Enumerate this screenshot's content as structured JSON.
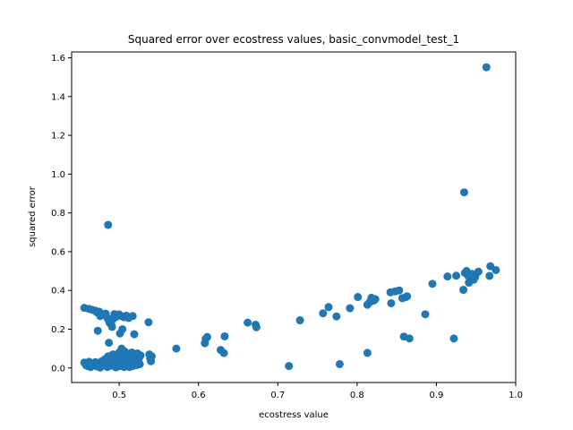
{
  "chart_data": {
    "type": "scatter",
    "title": "Squared error over ecostress values, basic_convmodel_test_1",
    "xlabel": "ecostress value",
    "ylabel": "squared error",
    "xlim": [
      0.44,
      1.0
    ],
    "ylim": [
      -0.075,
      1.63
    ],
    "xticks": [
      0.5,
      0.6,
      0.7,
      0.8,
      0.9,
      1.0
    ],
    "xtick_labels": [
      "0.5",
      "0.6",
      "0.7",
      "0.8",
      "0.9",
      "1.0"
    ],
    "yticks": [
      0.0,
      0.2,
      0.4,
      0.6,
      0.8,
      1.0,
      1.2,
      1.4,
      1.6
    ],
    "ytick_labels": [
      "0.0",
      "0.2",
      "0.4",
      "0.6",
      "0.8",
      "1.0",
      "1.2",
      "1.4",
      "1.6"
    ],
    "grid": false,
    "marker_color": "#1f77b4",
    "points": [
      [
        0.456,
        0.31
      ],
      [
        0.462,
        0.305
      ],
      [
        0.466,
        0.3
      ],
      [
        0.47,
        0.295
      ],
      [
        0.472,
        0.287
      ],
      [
        0.475,
        0.29
      ],
      [
        0.476,
        0.268
      ],
      [
        0.48,
        0.277
      ],
      [
        0.483,
        0.28
      ],
      [
        0.485,
        0.258
      ],
      [
        0.487,
        0.243
      ],
      [
        0.488,
        0.232
      ],
      [
        0.49,
        0.224
      ],
      [
        0.491,
        0.212
      ],
      [
        0.492,
        0.252
      ],
      [
        0.494,
        0.278
      ],
      [
        0.496,
        0.263
      ],
      [
        0.498,
        0.27
      ],
      [
        0.5,
        0.276
      ],
      [
        0.503,
        0.267
      ],
      [
        0.506,
        0.262
      ],
      [
        0.509,
        0.27
      ],
      [
        0.512,
        0.258
      ],
      [
        0.517,
        0.268
      ],
      [
        0.501,
        0.178
      ],
      [
        0.504,
        0.2
      ],
      [
        0.473,
        0.192
      ],
      [
        0.519,
        0.174
      ],
      [
        0.537,
        0.236
      ],
      [
        0.486,
        0.738
      ],
      [
        0.487,
        0.13
      ],
      [
        0.456,
        0.028
      ],
      [
        0.458,
        0.015
      ],
      [
        0.46,
        0.01
      ],
      [
        0.462,
        0.032
      ],
      [
        0.464,
        0.005
      ],
      [
        0.466,
        0.022
      ],
      [
        0.468,
        0.012
      ],
      [
        0.47,
        0.03
      ],
      [
        0.472,
        0.008
      ],
      [
        0.474,
        0.02
      ],
      [
        0.476,
        0.002
      ],
      [
        0.478,
        0.035
      ],
      [
        0.48,
        0.015
      ],
      [
        0.482,
        0.045
      ],
      [
        0.484,
        0.025
      ],
      [
        0.485,
        0.005
      ],
      [
        0.486,
        0.06
      ],
      [
        0.488,
        0.03
      ],
      [
        0.49,
        0.012
      ],
      [
        0.491,
        0.05
      ],
      [
        0.492,
        0.07
      ],
      [
        0.494,
        0.02
      ],
      [
        0.495,
        0.04
      ],
      [
        0.496,
        0.003
      ],
      [
        0.497,
        0.06
      ],
      [
        0.498,
        0.03
      ],
      [
        0.5,
        0.08
      ],
      [
        0.501,
        0.01
      ],
      [
        0.502,
        0.045
      ],
      [
        0.503,
        0.1
      ],
      [
        0.504,
        0.025
      ],
      [
        0.505,
        0.06
      ],
      [
        0.506,
        0.005
      ],
      [
        0.507,
        0.085
      ],
      [
        0.508,
        0.035
      ],
      [
        0.509,
        0.05
      ],
      [
        0.51,
        0.015
      ],
      [
        0.511,
        0.07
      ],
      [
        0.512,
        0.04
      ],
      [
        0.513,
        0.005
      ],
      [
        0.514,
        0.055
      ],
      [
        0.515,
        0.025
      ],
      [
        0.516,
        0.08
      ],
      [
        0.517,
        0.01
      ],
      [
        0.518,
        0.045
      ],
      [
        0.519,
        0.03
      ],
      [
        0.52,
        0.06
      ],
      [
        0.522,
        0.015
      ],
      [
        0.523,
        0.075
      ],
      [
        0.524,
        0.04
      ],
      [
        0.525,
        0.05
      ],
      [
        0.526,
        0.02
      ],
      [
        0.527,
        0.065
      ],
      [
        0.538,
        0.07
      ],
      [
        0.539,
        0.05
      ],
      [
        0.54,
        0.035
      ],
      [
        0.541,
        0.06
      ],
      [
        0.572,
        0.1
      ],
      [
        0.608,
        0.128
      ],
      [
        0.609,
        0.15
      ],
      [
        0.611,
        0.16
      ],
      [
        0.628,
        0.093
      ],
      [
        0.632,
        0.077
      ],
      [
        0.633,
        0.163
      ],
      [
        0.662,
        0.234
      ],
      [
        0.672,
        0.223
      ],
      [
        0.673,
        0.21
      ],
      [
        0.714,
        0.01
      ],
      [
        0.728,
        0.246
      ],
      [
        0.757,
        0.282
      ],
      [
        0.764,
        0.314
      ],
      [
        0.774,
        0.266
      ],
      [
        0.778,
        0.02
      ],
      [
        0.791,
        0.308
      ],
      [
        0.801,
        0.366
      ],
      [
        0.813,
        0.078
      ],
      [
        0.813,
        0.326
      ],
      [
        0.816,
        0.34
      ],
      [
        0.818,
        0.362
      ],
      [
        0.821,
        0.348
      ],
      [
        0.823,
        0.355
      ],
      [
        0.842,
        0.39
      ],
      [
        0.843,
        0.334
      ],
      [
        0.848,
        0.395
      ],
      [
        0.853,
        0.4
      ],
      [
        0.857,
        0.36
      ],
      [
        0.859,
        0.162
      ],
      [
        0.861,
        0.365
      ],
      [
        0.863,
        0.37
      ],
      [
        0.866,
        0.152
      ],
      [
        0.886,
        0.277
      ],
      [
        0.895,
        0.434
      ],
      [
        0.914,
        0.472
      ],
      [
        0.922,
        0.152
      ],
      [
        0.925,
        0.476
      ],
      [
        0.934,
        0.403
      ],
      [
        0.935,
        0.906
      ],
      [
        0.936,
        0.49
      ],
      [
        0.938,
        0.5
      ],
      [
        0.94,
        0.475
      ],
      [
        0.941,
        0.44
      ],
      [
        0.945,
        0.485
      ],
      [
        0.947,
        0.455
      ],
      [
        0.949,
        0.47
      ],
      [
        0.953,
        0.497
      ],
      [
        0.963,
        1.551
      ],
      [
        0.967,
        0.475
      ],
      [
        0.968,
        0.525
      ],
      [
        0.975,
        0.505
      ]
    ]
  }
}
